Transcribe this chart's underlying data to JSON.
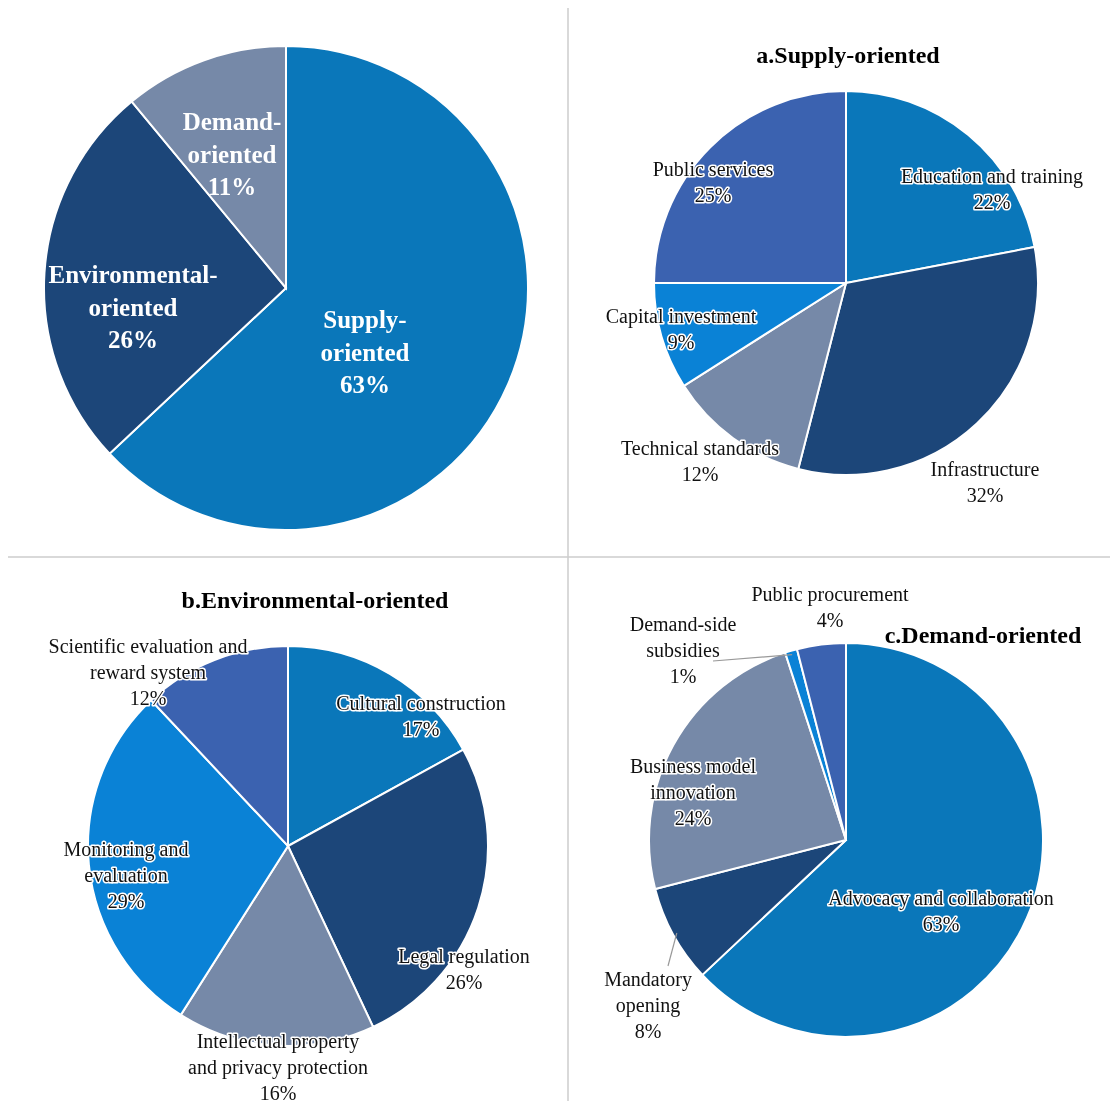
{
  "chart_data": [
    {
      "type": "pie",
      "categories": [
        "Supply-oriented",
        "Environmental-oriented",
        "Demand-oriented"
      ],
      "values": [
        63,
        26,
        11
      ],
      "value_labels": [
        "63%",
        "26%",
        "11%"
      ],
      "colors": [
        "#0a77ba",
        "#1c4679",
        "#7689a8"
      ]
    },
    {
      "type": "pie",
      "title": "a.Supply-oriented",
      "categories": [
        "Education and training",
        "Infrastructure",
        "Technical standards",
        "Capital investment",
        "Public services"
      ],
      "values": [
        22,
        32,
        12,
        9,
        25
      ],
      "value_labels": [
        "22%",
        "32%",
        "12%",
        "9%",
        "25%"
      ],
      "colors": [
        "#0a77ba",
        "#1c4679",
        "#7689a8",
        "#0a82d6",
        "#3b62b0"
      ]
    },
    {
      "type": "pie",
      "title": "b.Environmental-oriented",
      "categories": [
        "Cultural construction",
        "Legal regulation",
        "Intellectual property and privacy protection",
        "Monitoring and evaluation",
        "Scientific evaluation and reward system"
      ],
      "values": [
        17,
        26,
        16,
        29,
        12
      ],
      "value_labels": [
        "17%",
        "26%",
        "16%",
        "29%",
        "12%"
      ],
      "colors": [
        "#0a77ba",
        "#1c4679",
        "#7689a8",
        "#0a82d6",
        "#3b62b0"
      ]
    },
    {
      "type": "pie",
      "title": "c.Demand-oriented",
      "categories": [
        "Advocacy and collaboration",
        "Mandatory opening",
        "Business model innovation",
        "Demand-side subsidies",
        "Public procurement"
      ],
      "values": [
        63,
        8,
        24,
        1,
        4
      ],
      "value_labels": [
        "63%",
        "8%",
        "24%",
        "1%",
        "4%"
      ],
      "colors": [
        "#0a77ba",
        "#1c4679",
        "#7689a8",
        "#0a82d6",
        "#3b62b0"
      ]
    }
  ]
}
